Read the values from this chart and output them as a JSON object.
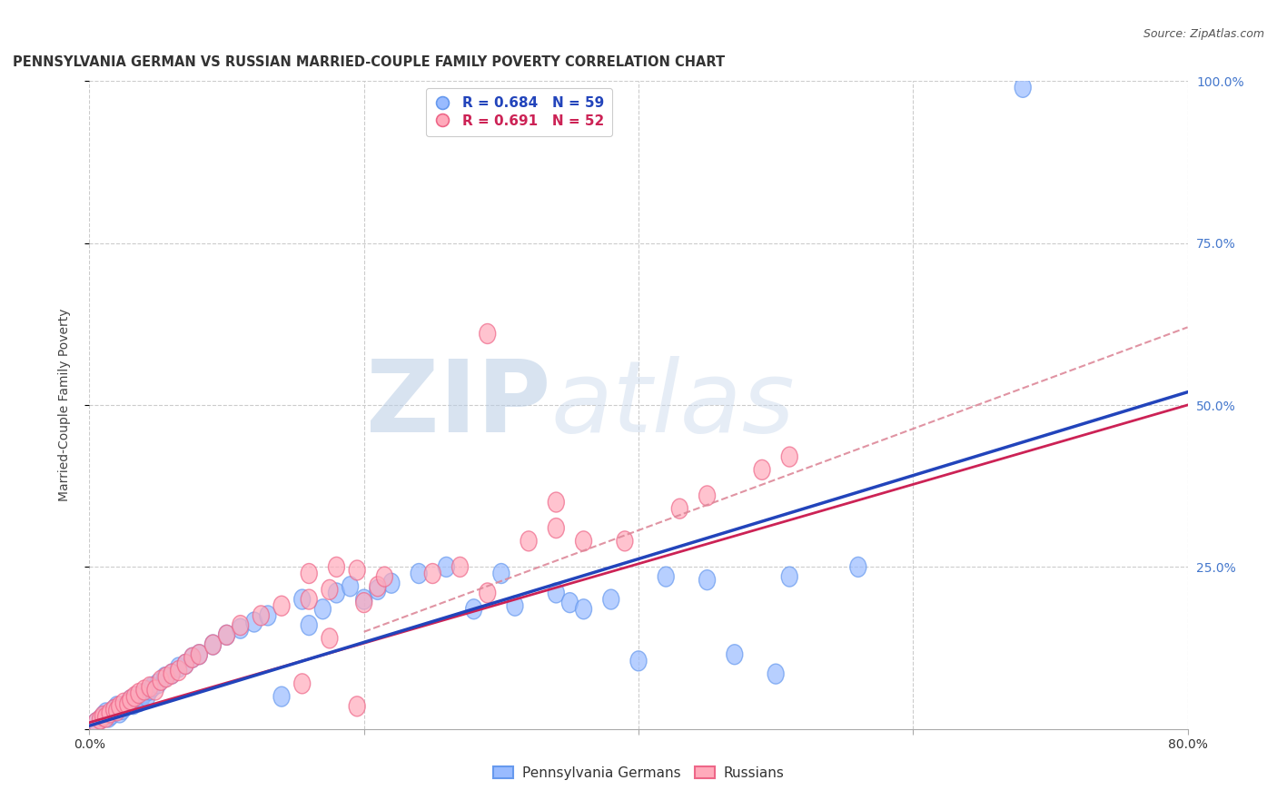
{
  "title": "PENNSYLVANIA GERMAN VS RUSSIAN MARRIED-COUPLE FAMILY POVERTY CORRELATION CHART",
  "source": "Source: ZipAtlas.com",
  "ylabel": "Married-Couple Family Poverty",
  "xlabel": "",
  "watermark_zip": "ZIP",
  "watermark_atlas": "atlas",
  "legend_blue_R": "0.684",
  "legend_blue_N": "59",
  "legend_pink_R": "0.691",
  "legend_pink_N": "52",
  "legend_blue_label": "Pennsylvania Germans",
  "legend_pink_label": "Russians",
  "xlim": [
    0.0,
    0.8
  ],
  "ylim": [
    0.0,
    1.0
  ],
  "grid_color": "#cccccc",
  "blue_marker_color": "#99bbff",
  "blue_marker_edge": "#6699ee",
  "pink_marker_color": "#ffaabb",
  "pink_marker_edge": "#ee6688",
  "blue_line_color": "#2244bb",
  "pink_line_color": "#cc2255",
  "dashed_line_color": "#dd8899",
  "tick_color": "#4477cc",
  "background_color": "#ffffff",
  "blue_scatter_x": [
    0.005,
    0.008,
    0.01,
    0.012,
    0.014,
    0.016,
    0.018,
    0.02,
    0.022,
    0.024,
    0.026,
    0.028,
    0.03,
    0.032,
    0.034,
    0.036,
    0.038,
    0.04,
    0.042,
    0.044,
    0.046,
    0.05,
    0.055,
    0.06,
    0.065,
    0.07,
    0.075,
    0.08,
    0.09,
    0.1,
    0.11,
    0.12,
    0.13,
    0.14,
    0.155,
    0.16,
    0.17,
    0.18,
    0.19,
    0.2,
    0.21,
    0.22,
    0.24,
    0.26,
    0.28,
    0.3,
    0.31,
    0.34,
    0.35,
    0.36,
    0.38,
    0.4,
    0.42,
    0.45,
    0.47,
    0.5,
    0.51,
    0.56,
    0.68
  ],
  "blue_scatter_y": [
    0.01,
    0.015,
    0.02,
    0.025,
    0.018,
    0.022,
    0.03,
    0.035,
    0.025,
    0.03,
    0.035,
    0.04,
    0.045,
    0.038,
    0.05,
    0.042,
    0.048,
    0.055,
    0.05,
    0.06,
    0.065,
    0.07,
    0.08,
    0.085,
    0.095,
    0.1,
    0.11,
    0.115,
    0.13,
    0.145,
    0.155,
    0.165,
    0.175,
    0.05,
    0.2,
    0.16,
    0.185,
    0.21,
    0.22,
    0.2,
    0.215,
    0.225,
    0.24,
    0.25,
    0.185,
    0.24,
    0.19,
    0.21,
    0.195,
    0.185,
    0.2,
    0.105,
    0.235,
    0.23,
    0.115,
    0.085,
    0.235,
    0.25,
    0.99
  ],
  "pink_scatter_x": [
    0.005,
    0.008,
    0.01,
    0.012,
    0.015,
    0.018,
    0.02,
    0.022,
    0.025,
    0.028,
    0.03,
    0.033,
    0.036,
    0.04,
    0.044,
    0.048,
    0.052,
    0.056,
    0.06,
    0.065,
    0.07,
    0.075,
    0.08,
    0.09,
    0.1,
    0.11,
    0.125,
    0.14,
    0.16,
    0.175,
    0.2,
    0.21,
    0.25,
    0.27,
    0.29,
    0.32,
    0.34,
    0.36,
    0.39,
    0.16,
    0.18,
    0.195,
    0.215,
    0.34,
    0.43,
    0.45,
    0.49,
    0.51,
    0.29,
    0.155,
    0.175,
    0.195
  ],
  "pink_scatter_y": [
    0.01,
    0.015,
    0.02,
    0.018,
    0.025,
    0.03,
    0.028,
    0.035,
    0.04,
    0.038,
    0.045,
    0.05,
    0.055,
    0.06,
    0.065,
    0.06,
    0.075,
    0.08,
    0.085,
    0.09,
    0.1,
    0.11,
    0.115,
    0.13,
    0.145,
    0.16,
    0.175,
    0.19,
    0.2,
    0.215,
    0.195,
    0.22,
    0.24,
    0.25,
    0.21,
    0.29,
    0.31,
    0.29,
    0.29,
    0.24,
    0.25,
    0.245,
    0.235,
    0.35,
    0.34,
    0.36,
    0.4,
    0.42,
    0.61,
    0.07,
    0.14,
    0.035
  ],
  "blue_line_x0": 0.0,
  "blue_line_y0": 0.005,
  "blue_line_x1": 0.8,
  "blue_line_y1": 0.52,
  "pink_line_x0": 0.0,
  "pink_line_y0": 0.01,
  "pink_line_x1": 0.8,
  "pink_line_y1": 0.5,
  "dashed_line_x0": 0.2,
  "dashed_line_y0": 0.15,
  "dashed_line_x1": 0.8,
  "dashed_line_y1": 0.62
}
